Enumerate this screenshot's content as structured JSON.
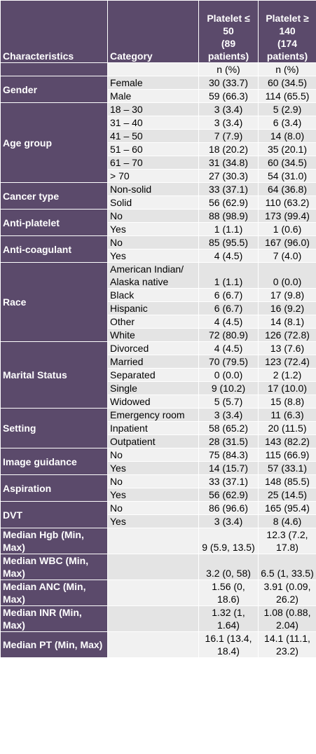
{
  "header": {
    "col1": "Characteristics",
    "col2": "Category",
    "col3": [
      "Platelet ≤",
      "50",
      "(89",
      "patients)"
    ],
    "col4": [
      "Platelet ≥",
      "140",
      "(174",
      "patients)"
    ]
  },
  "units": {
    "col3": "n (%)",
    "col4": "n (%)"
  },
  "groups": [
    {
      "label": "Gender",
      "rows": [
        {
          "category": "Female",
          "a": "30 (33.7)",
          "b": "60 (34.5)"
        },
        {
          "category": "Male",
          "a": "59 (66.3)",
          "b": "114 (65.5)"
        }
      ]
    },
    {
      "label": "Age group",
      "rows": [
        {
          "category": "18 – 30",
          "a": "3 (3.4)",
          "b": "5 (2.9)"
        },
        {
          "category": "31 – 40",
          "a": "3 (3.4)",
          "b": "6 (3.4)"
        },
        {
          "category": "41 – 50",
          "a": "7 (7.9)",
          "b": "14 (8.0)"
        },
        {
          "category": "51 – 60",
          "a": "18 (20.2)",
          "b": "35 (20.1)"
        },
        {
          "category": "61 – 70",
          "a": "31 (34.8)",
          "b": "60 (34.5)"
        },
        {
          "category": "> 70",
          "a": "27 (30.3)",
          "b": "54 (31.0)"
        }
      ]
    },
    {
      "label": "Cancer type",
      "rows": [
        {
          "category": "Non-solid",
          "a": "33 (37.1)",
          "b": "64 (36.8)"
        },
        {
          "category": "Solid",
          "a": "56 (62.9)",
          "b": "110 (63.2)"
        }
      ]
    },
    {
      "label": "Anti-platelet",
      "rows": [
        {
          "category": "No",
          "a": "88 (98.9)",
          "b": "173 (99.4)"
        },
        {
          "category": "Yes",
          "a": "1 (1.1)",
          "b": "1 (0.6)"
        }
      ]
    },
    {
      "label": "Anti-coagulant",
      "rows": [
        {
          "category": "No",
          "a": "85 (95.5)",
          "b": "167 (96.0)"
        },
        {
          "category": "Yes",
          "a": "4 (4.5)",
          "b": "7 (4.0)"
        }
      ]
    },
    {
      "label": "Race",
      "rows": [
        {
          "category": "American Indian/ Alaska native",
          "a": "1 (1.1)",
          "b": "0 (0.0)"
        },
        {
          "category": "Black",
          "a": "6 (6.7)",
          "b": "17 (9.8)"
        },
        {
          "category": "Hispanic",
          "a": "6 (6.7)",
          "b": "16 (9.2)"
        },
        {
          "category": "Other",
          "a": "4 (4.5)",
          "b": "14 (8.1)"
        },
        {
          "category": "White",
          "a": "72 (80.9)",
          "b": "126 (72.8)"
        }
      ]
    },
    {
      "label": "Marital Status",
      "rows": [
        {
          "category": "Divorced",
          "a": "4 (4.5)",
          "b": "13 (7.6)"
        },
        {
          "category": "Married",
          "a": "70 (79.5)",
          "b": "123 (72.4)"
        },
        {
          "category": "Separated",
          "a": "0 (0.0)",
          "b": "2 (1.2)"
        },
        {
          "category": "Single",
          "a": "9 (10.2)",
          "b": "17 (10.0)"
        },
        {
          "category": "Widowed",
          "a": "5 (5.7)",
          "b": "15 (8.8)"
        }
      ]
    },
    {
      "label": "Setting",
      "rows": [
        {
          "category": "Emergency room",
          "a": "3 (3.4)",
          "b": "11 (6.3)"
        },
        {
          "category": "Inpatient",
          "a": "58 (65.2)",
          "b": "20 (11.5)"
        },
        {
          "category": "Outpatient",
          "a": "28 (31.5)",
          "b": "143 (82.2)"
        }
      ]
    },
    {
      "label": "Image guidance",
      "rows": [
        {
          "category": "No",
          "a": "75 (84.3)",
          "b": "115 (66.9)"
        },
        {
          "category": "Yes",
          "a": "14 (15.7)",
          "b": "57 (33.1)"
        }
      ]
    },
    {
      "label": "Aspiration",
      "rows": [
        {
          "category": "No",
          "a": "33 (37.1)",
          "b": "148 (85.5)"
        },
        {
          "category": "Yes",
          "a": "56 (62.9)",
          "b": "25 (14.5)"
        }
      ]
    },
    {
      "label": "DVT",
      "rows": [
        {
          "category": "No",
          "a": "86 (96.6)",
          "b": "165 (95.4)"
        },
        {
          "category": "Yes",
          "a": "3 (3.4)",
          "b": "8 (4.6)"
        }
      ]
    },
    {
      "label": "Median Hgb (Min, Max)",
      "rows": [
        {
          "category": "",
          "a": "9 (5.9, 13.5)",
          "b": "12.3 (7.2, 17.8)"
        }
      ]
    },
    {
      "label": "Median WBC (Min, Max)",
      "rows": [
        {
          "category": "",
          "a": "3.2 (0, 58)",
          "b": "6.5 (1, 33.5)"
        }
      ]
    },
    {
      "label": "Median ANC (Min, Max)",
      "rows": [
        {
          "category": "",
          "a": "1.56 (0, 18.6)",
          "b": "3.91 (0.09, 26.2)"
        }
      ]
    },
    {
      "label": "Median INR (Min, Max)",
      "rows": [
        {
          "category": "",
          "a": "1.32 (1, 1.64)",
          "b": "1.08 (0.88, 2.04)"
        }
      ]
    },
    {
      "label": "Median PT (Min, Max)",
      "rows": [
        {
          "category": "",
          "a": "16.1 (13.4, 18.4)",
          "b": "14.1 (11.1, 23.2)"
        }
      ]
    }
  ]
}
